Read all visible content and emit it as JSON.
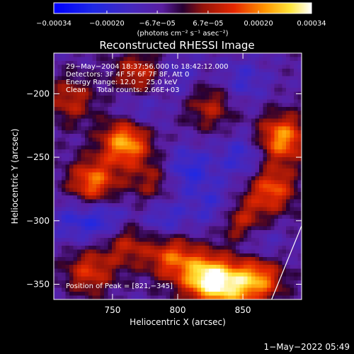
{
  "chart_data": {
    "type": "heatmap",
    "title": "Reconstructed RHESSI Image",
    "xlabel": "Heliocentric X (arcsec)",
    "ylabel": "Heliocentric Y (arcsec)",
    "x_range": [
      705,
      895
    ],
    "y_range": [
      -362,
      -168
    ],
    "x_ticks": [
      750,
      800,
      850
    ],
    "x_tick_labels": [
      "750",
      "800",
      "850"
    ],
    "y_ticks": [
      -200,
      -250,
      -300,
      -350
    ],
    "y_tick_labels": [
      "−200",
      "−250",
      "−300",
      "−350"
    ],
    "colorbar": {
      "range": [
        -0.00034,
        0.00034
      ],
      "tick_values": [
        -0.00034,
        -0.0002,
        -6.7e-05,
        6.7e-05,
        0.0002,
        0.00034
      ],
      "tick_labels": [
        "−0.00034",
        "−0.00020",
        "−6.7e−05",
        "6.7e−05",
        "0.00020",
        "0.00034"
      ],
      "units": "(photons cm⁻² s⁻¹ asec⁻²)"
    },
    "annotations": [
      "29−May−2004 18:37:56.000 to 18:42:12.000",
      "Detectors: 3F 4F 5F 6F 7F 8F, Att 0",
      "Energy Range: 12.0 − 25.0 keV",
      "Clean     Total counts: 2.66E+03"
    ],
    "peak_label": "Position of Peak = [821,−345]",
    "peak": [
      821,
      -345
    ],
    "sources": [
      {
        "x": 821,
        "y": -345,
        "amp": 0.00034
      },
      {
        "x": 760,
        "y": -238,
        "amp": 0.0003
      },
      {
        "x": 735,
        "y": -270,
        "amp": 0.00025
      },
      {
        "x": 880,
        "y": -235,
        "amp": 0.00028
      },
      {
        "x": 872,
        "y": -275,
        "amp": 0.00022
      },
      {
        "x": 848,
        "y": -300,
        "amp": 0.00018
      },
      {
        "x": 862,
        "y": -345,
        "amp": 0.00026
      },
      {
        "x": 795,
        "y": -328,
        "amp": 0.00022
      },
      {
        "x": 760,
        "y": -318,
        "amp": 0.00016
      },
      {
        "x": 732,
        "y": -340,
        "amp": 0.00018
      },
      {
        "x": 840,
        "y": -352,
        "amp": 0.00024
      },
      {
        "x": 770,
        "y": -185,
        "amp": 0.00018
      },
      {
        "x": 825,
        "y": -210,
        "amp": 0.00014
      },
      {
        "x": 780,
        "y": -270,
        "amp": 0.00012
      },
      {
        "x": 718,
        "y": -205,
        "amp": 0.00015
      },
      {
        "x": 808,
        "y": -260,
        "amp": -0.00014
      },
      {
        "x": 830,
        "y": -290,
        "amp": -0.00012
      },
      {
        "x": 790,
        "y": -300,
        "amp": -0.00012
      },
      {
        "x": 770,
        "y": -212,
        "amp": -0.0001
      },
      {
        "x": 745,
        "y": -300,
        "amp": -0.00014
      },
      {
        "x": 850,
        "y": -250,
        "amp": -0.00012
      },
      {
        "x": 850,
        "y": -190,
        "amp": -0.0001
      },
      {
        "x": 720,
        "y": -300,
        "amp": -0.0001
      },
      {
        "x": 862,
        "y": -320,
        "amp": -0.0001
      },
      {
        "x": 800,
        "y": -185,
        "amp": -8e-05
      }
    ],
    "limb_line": [
      [
        872,
        -362
      ],
      [
        895,
        -304
      ]
    ],
    "grid": false
  },
  "footer": {
    "timestamp": "1−May−2022 05:49"
  }
}
